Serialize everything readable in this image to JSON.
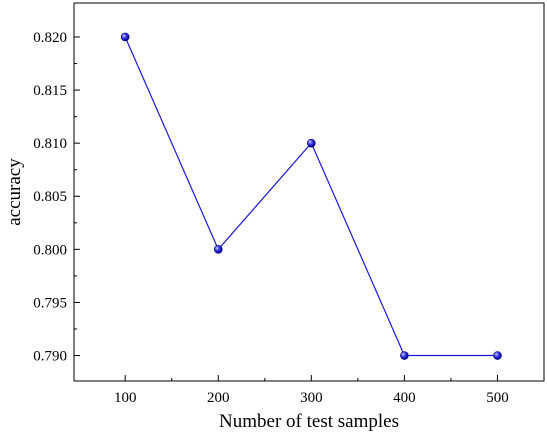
{
  "chart_data": {
    "type": "line",
    "title": "",
    "xlabel": "Number of test samples",
    "ylabel": "accuracy",
    "x": [
      100,
      200,
      300,
      400,
      500
    ],
    "series": [
      {
        "values": [
          0.82,
          0.8,
          0.81,
          0.79,
          0.79
        ]
      }
    ],
    "x_ticks": [
      "100",
      "200",
      "300",
      "400",
      "500"
    ],
    "y_ticks": [
      "0.790",
      "0.795",
      "0.800",
      "0.805",
      "0.810",
      "0.815",
      "0.820"
    ],
    "xlim": [
      45,
      550
    ],
    "ylim": [
      0.7876,
      0.8232
    ],
    "grid": false,
    "legend": "none",
    "colors": {
      "line": "#1a1adb",
      "marker_fill": "#3c3cf0",
      "marker_edge": "#00007a",
      "axis": "#000000"
    }
  }
}
